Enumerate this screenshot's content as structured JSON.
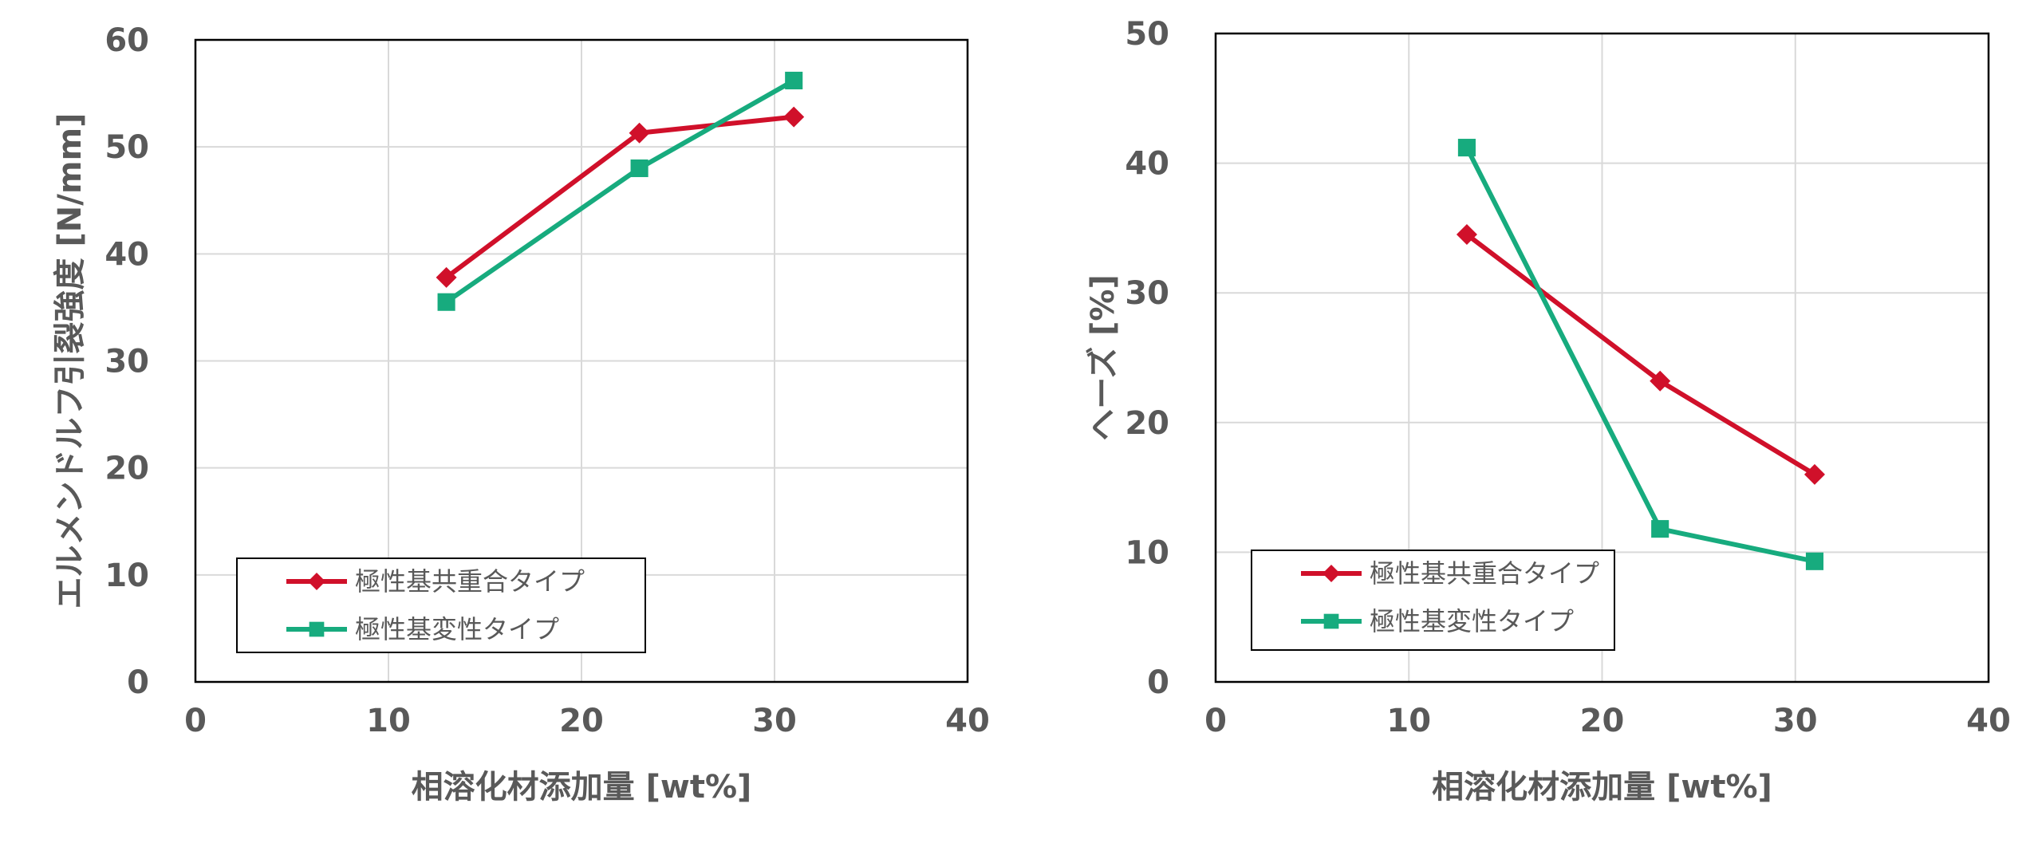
{
  "chart_data": [
    {
      "type": "line",
      "title": "",
      "xlabel": "相溶化材添加量 [wt%]",
      "ylabel": "エルメンドルフ引裂強度 [N/mm]",
      "xlim": [
        0,
        40
      ],
      "ylim": [
        0,
        60
      ],
      "xticks": [
        "0",
        "10",
        "20",
        "30",
        "40"
      ],
      "yticks": [
        "0",
        "10",
        "20",
        "30",
        "40",
        "50",
        "60"
      ],
      "grid": true,
      "legend_position": "bottom-left",
      "series": [
        {
          "name": "極性基共重合タイプ",
          "color": "#d0102a",
          "marker": "diamond",
          "x": [
            13,
            23,
            31
          ],
          "y": [
            37.8,
            51.3,
            52.8
          ]
        },
        {
          "name": "極性基変性タイプ",
          "color": "#17ab7e",
          "marker": "square",
          "x": [
            13,
            23,
            31
          ],
          "y": [
            35.5,
            48.0,
            56.2
          ]
        }
      ]
    },
    {
      "type": "line",
      "title": "",
      "xlabel": "相溶化材添加量 [wt%]",
      "ylabel": "ヘーズ [%]",
      "xlim": [
        0,
        40
      ],
      "ylim": [
        0,
        50
      ],
      "xticks": [
        "0",
        "10",
        "20",
        "30",
        "40"
      ],
      "yticks": [
        "0",
        "10",
        "20",
        "30",
        "40",
        "50"
      ],
      "grid": true,
      "legend_position": "bottom-left",
      "series": [
        {
          "name": "極性基共重合タイプ",
          "color": "#d0102a",
          "marker": "diamond",
          "x": [
            13,
            23,
            31
          ],
          "y": [
            34.5,
            23.2,
            16.0
          ]
        },
        {
          "name": "極性基変性タイプ",
          "color": "#17ab7e",
          "marker": "square",
          "x": [
            13,
            23,
            31
          ],
          "y": [
            41.2,
            11.8,
            9.3
          ]
        }
      ]
    }
  ]
}
